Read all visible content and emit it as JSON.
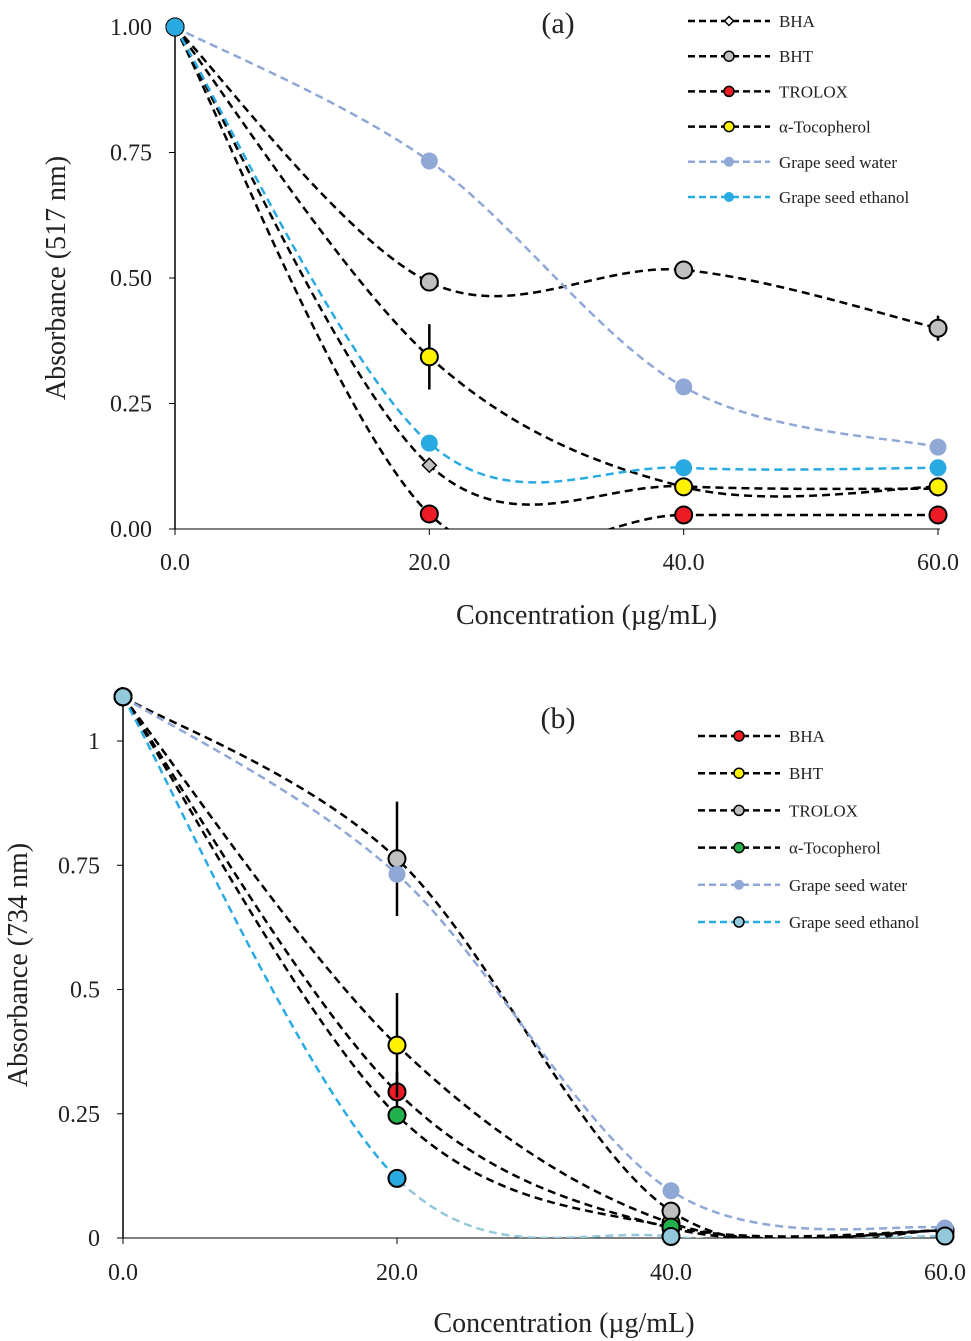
{
  "chart_data": [
    {
      "type": "line",
      "panel_label": "(a)",
      "xlabel": "Concentration (µg/mL)",
      "ylabel": "Absorbance (517 nm)",
      "x": [
        0,
        20,
        40,
        60
      ],
      "x_tick_labels": [
        "0.0",
        "20.0",
        "40.0",
        "60.0"
      ],
      "y_tick_labels": [
        "0.00",
        "0.25",
        "0.50",
        "0.75",
        "1.00"
      ],
      "y_ticks": [
        0,
        0.25,
        0.5,
        0.75,
        1.0
      ],
      "xlim": [
        0,
        60
      ],
      "ylim": [
        0,
        1.0
      ],
      "grid": false,
      "smoothed": true,
      "legend_position": "top-right",
      "series": [
        {
          "name": "BHA",
          "values": [
            1.0,
            0.127,
            0.085,
            0.08
          ],
          "line_color": "#000000",
          "marker": "diamond",
          "marker_color": "#bfbfbf"
        },
        {
          "name": "BHT",
          "values": [
            1.0,
            0.492,
            0.516,
            0.4
          ],
          "errors": [
            0,
            0.005,
            0.005,
            0.025
          ],
          "line_color": "#000000",
          "marker": "circle",
          "marker_color": "#bfbfbf"
        },
        {
          "name": "TROLOX",
          "values": [
            1.0,
            0.03,
            0.028,
            0.028
          ],
          "line_color": "#000000",
          "marker": "circle",
          "marker_color": "#ed1c24"
        },
        {
          "name": "α-Tocopherol",
          "values": [
            1.0,
            0.343,
            0.084,
            0.084
          ],
          "errors": [
            0,
            0.065,
            0,
            0
          ],
          "line_color": "#000000",
          "marker": "circle",
          "marker_color": "#fff200"
        },
        {
          "name": "Grape seed water",
          "values": [
            1.0,
            0.733,
            0.283,
            0.163
          ],
          "line_color": "#8fa8d6",
          "marker": "circle-noborder",
          "marker_color": "#8fa8d6"
        },
        {
          "name": "Grape seed ethanol",
          "values": [
            1.0,
            0.171,
            0.122,
            0.122
          ],
          "line_color": "#29abe2",
          "marker": "circle-noborder",
          "marker_color": "#29abe2"
        }
      ]
    },
    {
      "type": "line",
      "panel_label": "(b)",
      "xlabel": "Concentration (µg/mL)",
      "ylabel": "Absorbance (734 nm)",
      "x": [
        0,
        20,
        40,
        60
      ],
      "x_tick_labels": [
        "0.0",
        "20.0",
        "40.0",
        "60.0"
      ],
      "y_tick_labels": [
        "0",
        "0.25",
        "0.5",
        "0.75",
        "1"
      ],
      "y_ticks": [
        0,
        0.25,
        0.5,
        0.75,
        1.0
      ],
      "xlim": [
        0,
        60
      ],
      "ylim": [
        0,
        1.1
      ],
      "grid": false,
      "smoothed": true,
      "legend_position": "top-right",
      "series": [
        {
          "name": "BHA",
          "values": [
            1.089,
            0.294,
            0.02,
            0.015
          ],
          "errors": [
            0,
            0.04,
            0,
            0
          ],
          "line_color": "#000000",
          "marker": "circle",
          "marker_color": "#ed1c24"
        },
        {
          "name": "BHT",
          "values": [
            1.089,
            0.388,
            0.03,
            0.015
          ],
          "errors": [
            0,
            0.105,
            0,
            0
          ],
          "line_color": "#000000",
          "marker": "circle",
          "marker_color": "#fff200"
        },
        {
          "name": "TROLOX",
          "values": [
            1.089,
            0.763,
            0.054,
            0.015
          ],
          "errors": [
            0,
            0.115,
            0,
            0
          ],
          "line_color": "#000000",
          "marker": "circle",
          "marker_color": "#bfbfbf"
        },
        {
          "name": "α-Tocopherol",
          "values": [
            1.089,
            0.247,
            0.022,
            0.015
          ],
          "line_color": "#000000",
          "marker": "circle",
          "marker_color": "#22b14c"
        },
        {
          "name": "Grape seed water",
          "values": [
            1.089,
            0.732,
            0.095,
            0.02
          ],
          "line_color": "#8fa8d6",
          "marker": "circle-noborder",
          "marker_color": "#8fa8d6"
        },
        {
          "name": "Grape seed ethanol",
          "values": [
            1.089,
            0.12,
            0.003,
            0.004
          ],
          "line_color": "#93c9db",
          "line_color_start": "#29abe2",
          "marker": "circle",
          "marker_color": "#93c9db",
          "marker_color_mid": "#29abe2"
        }
      ]
    }
  ]
}
